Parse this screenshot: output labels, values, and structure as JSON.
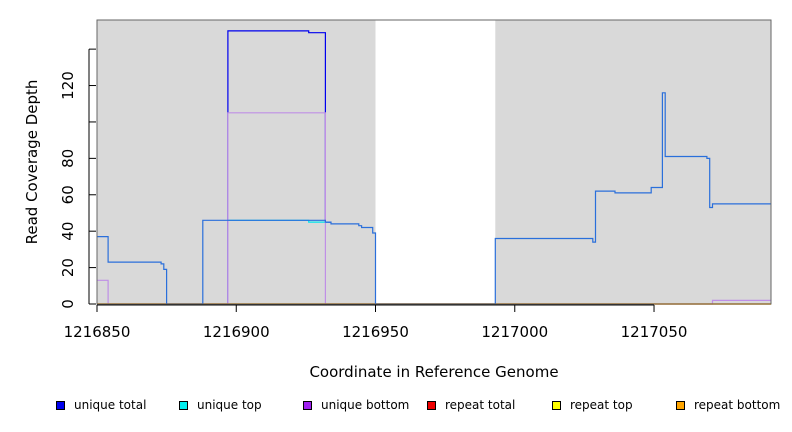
{
  "chart_data": {
    "type": "line",
    "title": "",
    "xlabel": "Coordinate in Reference Genome",
    "ylabel": "Read Coverage Depth",
    "xlim": [
      1216850,
      1217092
    ],
    "ylim": [
      0,
      156
    ],
    "x_ticks": [
      1216850,
      1216900,
      1216950,
      1217000,
      1217050
    ],
    "x_tick_labels": [
      "1216850",
      "1216900",
      "1216950",
      "1217000",
      "1217050"
    ],
    "y_ticks": [
      0,
      20,
      40,
      60,
      80,
      100,
      120,
      140
    ],
    "y_tick_labels": [
      "0",
      "20",
      "40",
      "60",
      "80",
      "",
      "120",
      ""
    ],
    "background_color": "#d9d9d9",
    "gap_region": [
      1216950,
      1216993
    ],
    "grid": false,
    "legend_position": "bottom",
    "series": [
      {
        "name": "unique total",
        "color": "#0000ee",
        "points": [
          [
            1216897,
            0
          ],
          [
            1216897,
            150
          ],
          [
            1216926,
            150
          ],
          [
            1216926,
            149
          ],
          [
            1216932,
            149
          ],
          [
            1216932,
            45
          ],
          [
            1216934,
            45
          ]
        ]
      },
      {
        "name": "unique top",
        "color": "#00e5ee",
        "points": [
          [
            1216897,
            46
          ],
          [
            1216926,
            46
          ],
          [
            1216926,
            45
          ],
          [
            1216933,
            45
          ]
        ]
      },
      {
        "name": "unique bottom",
        "color": "#bf8fe6",
        "points": [
          [
            1216850,
            13
          ],
          [
            1216854,
            13
          ],
          [
            1216854,
            0
          ],
          [
            1216897,
            0
          ],
          [
            1216897,
            105
          ],
          [
            1216932,
            105
          ],
          [
            1216932,
            0
          ],
          [
            1217071,
            0
          ],
          [
            1217071,
            2
          ],
          [
            1217092,
            2
          ]
        ]
      },
      {
        "name": "repeat total",
        "color": "#e00000",
        "points": [
          [
            1216850,
            0
          ],
          [
            1217092,
            0
          ]
        ]
      },
      {
        "name": "repeat top",
        "color": "#eeee00",
        "points": [
          [
            1216850,
            0
          ],
          [
            1217092,
            0
          ]
        ]
      },
      {
        "name": "repeat bottom",
        "color": "#ffa500",
        "points": [
          [
            1216850,
            0
          ],
          [
            1216897,
            0
          ],
          [
            1216932,
            0
          ],
          [
            1217071,
            0
          ],
          [
            1217092,
            0
          ]
        ]
      },
      {
        "name": "",
        "color": "#2a6fdb",
        "points": [
          [
            1216850,
            37
          ],
          [
            1216854,
            37
          ],
          [
            1216854,
            23
          ],
          [
            1216873,
            23
          ],
          [
            1216873,
            22
          ],
          [
            1216874,
            22
          ],
          [
            1216874,
            19
          ],
          [
            1216875,
            19
          ],
          [
            1216875,
            0
          ],
          [
            1216888,
            0
          ],
          [
            1216888,
            46
          ],
          [
            1216897,
            46
          ],
          [
            1216932,
            46
          ],
          [
            1216932,
            45
          ],
          [
            1216934,
            45
          ],
          [
            1216934,
            44
          ],
          [
            1216944,
            44
          ],
          [
            1216944,
            43
          ],
          [
            1216945,
            43
          ],
          [
            1216945,
            42
          ],
          [
            1216949,
            42
          ],
          [
            1216949,
            39
          ],
          [
            1216950,
            39
          ],
          [
            1216950,
            0
          ],
          [
            1216993,
            0
          ],
          [
            1216993,
            36
          ],
          [
            1217028,
            36
          ],
          [
            1217028,
            34
          ],
          [
            1217029,
            34
          ],
          [
            1217029,
            62
          ],
          [
            1217036,
            62
          ],
          [
            1217036,
            61
          ],
          [
            1217049,
            61
          ],
          [
            1217049,
            64
          ],
          [
            1217053,
            64
          ],
          [
            1217053,
            116
          ],
          [
            1217054,
            116
          ],
          [
            1217054,
            81
          ],
          [
            1217069,
            81
          ],
          [
            1217069,
            80
          ],
          [
            1217070,
            80
          ],
          [
            1217070,
            53
          ],
          [
            1217071,
            53
          ],
          [
            1217071,
            55
          ],
          [
            1217092,
            55
          ]
        ]
      }
    ]
  },
  "legend": {
    "items": [
      {
        "label": "unique total",
        "color": "#0000ee"
      },
      {
        "label": "unique top",
        "color": "#00eeee"
      },
      {
        "label": "unique bottom",
        "color": "#a020f0"
      },
      {
        "label": "repeat total",
        "color": "#ee0000"
      },
      {
        "label": "repeat top",
        "color": "#ffff00"
      },
      {
        "label": "repeat bottom",
        "color": "#ffa500"
      }
    ]
  }
}
